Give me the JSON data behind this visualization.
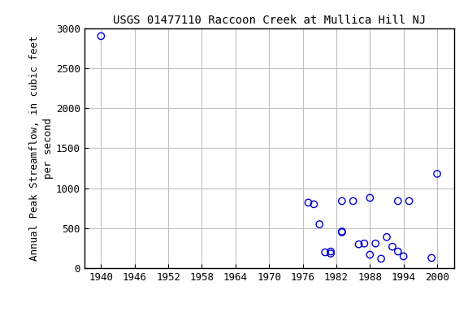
{
  "title": "USGS 01477110 Raccoon Creek at Mullica Hill NJ",
  "ylabel_line1": "Annual Peak Streamflow, in cubic feet",
  "ylabel_line2": "per second",
  "xlim": [
    1937,
    2003
  ],
  "ylim": [
    0,
    3000
  ],
  "xticks": [
    1940,
    1946,
    1952,
    1958,
    1964,
    1970,
    1976,
    1982,
    1988,
    1994,
    2000
  ],
  "yticks": [
    0,
    500,
    1000,
    1500,
    2000,
    2500,
    3000
  ],
  "data": [
    [
      1940,
      2900
    ],
    [
      1977,
      820
    ],
    [
      1978,
      800
    ],
    [
      1979,
      550
    ],
    [
      1980,
      200
    ],
    [
      1981,
      185
    ],
    [
      1981,
      210
    ],
    [
      1983,
      840
    ],
    [
      1983,
      460
    ],
    [
      1983,
      450
    ],
    [
      1985,
      840
    ],
    [
      1986,
      300
    ],
    [
      1987,
      310
    ],
    [
      1988,
      880
    ],
    [
      1988,
      170
    ],
    [
      1989,
      310
    ],
    [
      1990,
      120
    ],
    [
      1991,
      390
    ],
    [
      1992,
      270
    ],
    [
      1993,
      210
    ],
    [
      1993,
      840
    ],
    [
      1994,
      150
    ],
    [
      1995,
      840
    ],
    [
      1999,
      130
    ],
    [
      2000,
      1180
    ]
  ],
  "marker_color": "#0000cc",
  "marker_size": 6,
  "bg_color": "#ffffff",
  "grid_color": "#c0c0c0",
  "title_fontsize": 10,
  "label_fontsize": 9,
  "tick_fontsize": 9
}
